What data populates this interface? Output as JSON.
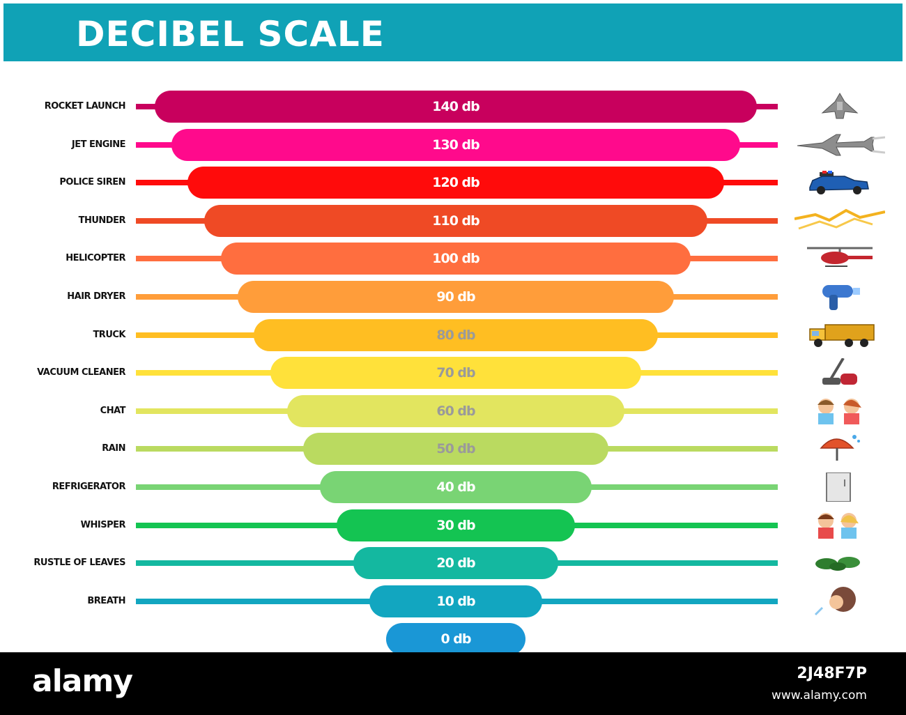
{
  "title": "DECIBEL SCALE",
  "rows": [
    {
      "label": "ROCKET LAUNCH",
      "value": "140 db",
      "db": 140,
      "color": "#c8005d",
      "text_color": "#ffffff",
      "icon": "rocket-icon"
    },
    {
      "label": "JET ENGINE",
      "value": "130 db",
      "db": 130,
      "color": "#ff0a8c",
      "text_color": "#ffffff",
      "icon": "jet-icon"
    },
    {
      "label": "POLICE SIREN",
      "value": "120 db",
      "db": 120,
      "color": "#ff0b0b",
      "text_color": "#ffffff",
      "icon": "police-car-icon"
    },
    {
      "label": "THUNDER",
      "value": "110 db",
      "db": 110,
      "color": "#ef4a25",
      "text_color": "#ffffff",
      "icon": "thunder-icon"
    },
    {
      "label": "HELICOPTER",
      "value": "100 db",
      "db": 100,
      "color": "#ff6e3f",
      "text_color": "#ffffff",
      "icon": "helicopter-icon"
    },
    {
      "label": "HAIR DRYER",
      "value": "90 db",
      "db": 90,
      "color": "#ff9d3a",
      "text_color": "#ffffff",
      "icon": "hair-dryer-icon"
    },
    {
      "label": "TRUCK",
      "value": "80 db",
      "db": 80,
      "color": "#ffbe22",
      "text_color": "#9a9a9a",
      "icon": "truck-icon"
    },
    {
      "label": "VACUUM CLEANER",
      "value": "70 db",
      "db": 70,
      "color": "#ffe13a",
      "text_color": "#9a9a9a",
      "icon": "vacuum-icon"
    },
    {
      "label": "CHAT",
      "value": "60 db",
      "db": 60,
      "color": "#e2e55f",
      "text_color": "#9a9a9a",
      "icon": "chat-icon"
    },
    {
      "label": "RAIN",
      "value": "50 db",
      "db": 50,
      "color": "#bada60",
      "text_color": "#9a9a9a",
      "icon": "umbrella-icon"
    },
    {
      "label": "REFRIGERATOR",
      "value": "40 db",
      "db": 40,
      "color": "#79d474",
      "text_color": "#ffffff",
      "icon": "fridge-icon"
    },
    {
      "label": "WHISPER",
      "value": "30 db",
      "db": 30,
      "color": "#14c452",
      "text_color": "#ffffff",
      "icon": "whisper-icon"
    },
    {
      "label": "RUSTLE OF LEAVES",
      "value": "20 db",
      "db": 20,
      "color": "#14b8a0",
      "text_color": "#ffffff",
      "icon": "leaves-icon"
    },
    {
      "label": "BREATH",
      "value": "10 db",
      "db": 10,
      "color": "#12a6c0",
      "text_color": "#ffffff",
      "icon": "breath-icon"
    },
    {
      "label": "",
      "value": "0 db",
      "db": 0,
      "color": "#1a97d6",
      "text_color": "#ffffff",
      "icon": ""
    }
  ],
  "footer": {
    "brand": "alamy",
    "image_id": "2J48F7P",
    "site": "www.alamy.com"
  }
}
